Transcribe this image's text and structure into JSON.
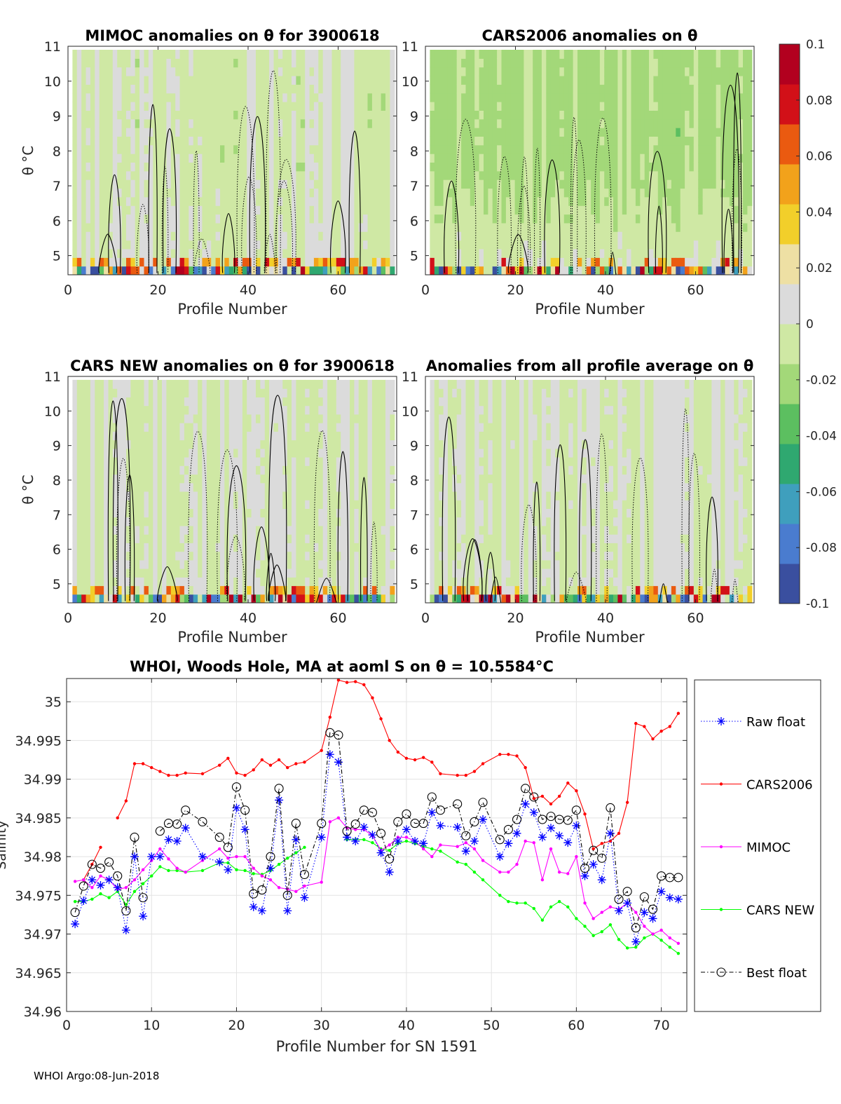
{
  "footer": "WHOI Argo:08-Jun-2018",
  "colors": {
    "cars2006": "#ff0000",
    "mimoc": "#ff00ff",
    "cars_new": "#00ff00",
    "raw": "#0000ff",
    "best": "#000000",
    "contour": "#000000",
    "colormap": [
      "#3a4f9f",
      "#4a7ccf",
      "#3f9fbd",
      "#2fa870",
      "#5cbf60",
      "#a3d879",
      "#cfe8a4",
      "#dbdbdb",
      "#eee0a4",
      "#f2cf2a",
      "#f2a21b",
      "#ea5a10",
      "#d21018",
      "#b2001f"
    ]
  },
  "chart_data": [
    {
      "id": "mimoc",
      "type": "heatmap",
      "title": "MIMOC anomalies on θ  for 3900618",
      "xlabel": "Profile Number",
      "ylabel": "θ °C",
      "xlim": [
        0,
        73
      ],
      "ylim": [
        4.45,
        11
      ],
      "xticks": [
        0,
        20,
        40,
        60
      ],
      "yticks": [
        5,
        6,
        7,
        8,
        9,
        10,
        11
      ],
      "bias": -0.004,
      "seed": 3
    },
    {
      "id": "cars2006",
      "type": "heatmap",
      "title": "CARS2006 anomalies on θ",
      "xlabel": "Profile Number",
      "ylabel": "",
      "xlim": [
        0,
        73
      ],
      "ylim": [
        4.45,
        11
      ],
      "xticks": [
        0,
        20,
        40,
        60
      ],
      "yticks": [
        5,
        6,
        7,
        8,
        9,
        10,
        11
      ],
      "bias": -0.018,
      "seed": 7
    },
    {
      "id": "cars_new",
      "type": "heatmap",
      "title": "CARS NEW anomalies on θ for 3900618",
      "xlabel": "Profile Number",
      "ylabel": "θ °C",
      "xlim": [
        0,
        73
      ],
      "ylim": [
        4.45,
        11
      ],
      "xticks": [
        0,
        20,
        40,
        60
      ],
      "yticks": [
        5,
        6,
        7,
        8,
        9,
        10,
        11
      ],
      "bias": -0.002,
      "seed": 11
    },
    {
      "id": "profile_avg",
      "type": "heatmap",
      "title": "Anomalies from all profile average on θ",
      "xlabel": "Profile Number",
      "ylabel": "",
      "xlim": [
        0,
        73
      ],
      "ylim": [
        4.45,
        11
      ],
      "xticks": [
        0,
        20,
        40,
        60
      ],
      "yticks": [
        5,
        6,
        7,
        8,
        9,
        10,
        11
      ],
      "bias": 0.001,
      "seed": 17
    },
    {
      "id": "colorbar",
      "type": "colorbar",
      "range": [
        -0.1,
        0.1
      ],
      "ticks": [
        0.1,
        0.08,
        0.06,
        0.04,
        0.02,
        0,
        -0.02,
        -0.04,
        -0.06,
        -0.08,
        -0.1
      ],
      "tick_labels": [
        "0.1",
        "0.08",
        "0.06",
        "0.04",
        "0.02",
        "0",
        "-0.02",
        "-0.04",
        "-0.06",
        "-0.08",
        "-0.1"
      ]
    },
    {
      "id": "salinity",
      "type": "line",
      "title": "WHOI, Woods Hole, MA at aoml S on θ = 10.5584°C",
      "xlabel": "Profile Number for SN 1591",
      "ylabel": "Salinity",
      "xlim": [
        0,
        73
      ],
      "ylim": [
        34.96,
        35.003
      ],
      "xticks": [
        0,
        10,
        20,
        30,
        40,
        50,
        60,
        70
      ],
      "yticks": [
        34.96,
        34.965,
        34.97,
        34.975,
        34.98,
        34.985,
        34.99,
        34.995,
        35
      ],
      "ytick_labels": [
        "34.96",
        "34.965",
        "34.97",
        "34.975",
        "34.98",
        "34.985",
        "34.99",
        "34.995",
        "35"
      ],
      "legend": [
        "Raw float",
        "CARS2006",
        "MIMOC",
        "CARS NEW",
        "Best float"
      ],
      "series": [
        {
          "name": "Raw float",
          "style": "raw",
          "x": [
            1,
            2,
            3,
            4,
            5,
            6,
            7,
            8,
            9,
            10,
            11,
            12,
            13,
            14,
            16,
            18,
            19,
            20,
            21,
            22,
            23,
            24,
            25,
            26,
            27,
            28,
            30,
            31,
            32,
            33,
            34,
            35,
            36,
            37,
            38,
            39,
            40,
            41,
            42,
            43,
            44,
            46,
            47,
            48,
            49,
            51,
            52,
            53,
            54,
            55,
            56,
            57,
            58,
            59,
            60,
            61,
            62,
            63,
            64,
            65,
            66,
            67,
            68,
            69,
            70,
            71,
            72
          ],
          "y": [
            34.9713,
            34.9743,
            34.977,
            34.9763,
            34.977,
            34.976,
            34.9705,
            34.98,
            34.9723,
            34.98,
            34.98,
            34.9822,
            34.982,
            34.9837,
            34.98,
            34.9793,
            34.9783,
            34.9863,
            34.9835,
            34.9735,
            34.973,
            34.9785,
            34.9873,
            34.973,
            34.9822,
            34.9747,
            34.9825,
            34.9932,
            34.9922,
            34.9825,
            34.982,
            34.9838,
            34.9828,
            34.9805,
            34.978,
            34.982,
            34.9835,
            34.982,
            34.9817,
            34.9857,
            34.984,
            34.9838,
            34.9807,
            34.982,
            34.9848,
            34.98,
            34.9817,
            34.983,
            34.9868,
            34.9857,
            34.9825,
            34.9837,
            34.9827,
            34.9818,
            34.984,
            34.9775,
            34.979,
            34.977,
            34.983,
            34.973,
            34.974,
            34.969,
            34.9728,
            34.972,
            34.9755,
            34.9747,
            34.9745
          ]
        },
        {
          "name": "CARS2006",
          "style": "cars2006",
          "x": [
            1,
            2,
            3,
            4,
            null,
            6,
            7,
            8,
            9,
            10,
            11,
            12,
            13,
            14,
            16,
            18,
            19,
            20,
            21,
            22,
            23,
            24,
            25,
            26,
            27,
            28,
            30,
            31,
            32,
            33,
            34,
            35,
            36,
            37,
            38,
            39,
            40,
            41,
            42,
            43,
            44,
            46,
            47,
            48,
            49,
            51,
            52,
            53,
            54,
            55,
            56,
            57,
            58,
            59,
            60,
            61,
            62,
            63,
            64,
            65,
            66,
            67,
            68,
            69,
            70,
            71,
            72
          ],
          "y": [
            null,
            34.977,
            34.979,
            34.9812,
            null,
            34.985,
            34.9872,
            34.992,
            34.992,
            34.9915,
            34.991,
            34.9905,
            34.9905,
            34.9908,
            34.9907,
            34.9918,
            34.9927,
            34.9908,
            34.9905,
            34.9912,
            34.9925,
            34.9918,
            34.9925,
            34.9915,
            34.992,
            34.9922,
            34.9937,
            34.998,
            35.0028,
            35.0025,
            35.0026,
            35.0022,
            35.0005,
            34.9978,
            34.995,
            34.9935,
            34.9927,
            34.9925,
            34.9928,
            34.9922,
            34.9907,
            34.9905,
            34.9905,
            34.991,
            34.992,
            34.9932,
            34.9932,
            34.993,
            34.9915,
            34.9875,
            34.9878,
            34.9868,
            34.9878,
            34.9895,
            34.9885,
            34.9855,
            34.981,
            34.9817,
            34.982,
            34.983,
            34.987,
            34.9972,
            34.9968,
            34.9952,
            34.9962,
            34.9968,
            34.9985
          ]
        },
        {
          "name": "MIMOC",
          "style": "mimoc",
          "x": [
            1,
            2,
            3,
            4,
            5,
            6,
            7,
            8,
            9,
            10,
            11,
            12,
            13,
            14,
            16,
            18,
            19,
            20,
            21,
            22,
            23,
            24,
            25,
            26,
            27,
            28,
            30,
            31,
            32,
            33,
            34,
            35,
            36,
            37,
            38,
            39,
            40,
            41,
            42,
            43,
            44,
            46,
            47,
            48,
            49,
            51,
            52,
            53,
            54,
            55,
            56,
            57,
            58,
            59,
            60,
            61,
            62,
            63,
            64,
            65,
            66,
            67,
            68,
            69,
            70,
            71,
            72
          ],
          "y": [
            34.9768,
            34.977,
            34.976,
            34.9775,
            34.977,
            34.9758,
            34.976,
            34.977,
            34.9783,
            34.9795,
            34.981,
            34.9797,
            34.9785,
            34.978,
            34.9795,
            34.981,
            34.9798,
            34.98,
            34.98,
            34.9785,
            34.9775,
            34.977,
            34.976,
            34.9758,
            34.9755,
            34.9762,
            34.9767,
            34.9845,
            34.985,
            34.9837,
            34.9835,
            34.9835,
            34.9827,
            34.9808,
            34.9815,
            34.9825,
            34.9825,
            34.982,
            34.981,
            34.98,
            34.9815,
            34.9813,
            34.9818,
            34.981,
            34.9795,
            34.978,
            34.978,
            34.979,
            34.982,
            34.9818,
            34.977,
            34.981,
            34.978,
            34.9778,
            34.98,
            34.974,
            34.972,
            34.9728,
            34.9735,
            34.9732,
            34.974,
            34.9728,
            34.971,
            34.97,
            34.9705,
            34.9695,
            34.9688
          ]
        },
        {
          "name": "CARS NEW",
          "style": "cars_new",
          "x": [
            1,
            2,
            3,
            4,
            5,
            6,
            7,
            8,
            9,
            10,
            11,
            12,
            13,
            14,
            16,
            18,
            19,
            20,
            21,
            22,
            23,
            24,
            25,
            26,
            27,
            28,
            30,
            31,
            32,
            33,
            34,
            35,
            36,
            37,
            38,
            39,
            40,
            41,
            42,
            43,
            44,
            46,
            47,
            48,
            49,
            51,
            52,
            53,
            54,
            55,
            56,
            57,
            58,
            59,
            60,
            61,
            62,
            63,
            64,
            65,
            66,
            67,
            68,
            69,
            70,
            71,
            72
          ],
          "y": [
            34.9742,
            34.9742,
            34.9745,
            34.9752,
            34.9747,
            34.9755,
            34.9738,
            34.9755,
            34.9765,
            34.9775,
            34.9787,
            34.9782,
            34.9782,
            34.978,
            34.9782,
            34.9792,
            34.9792,
            34.9783,
            34.9782,
            34.9778,
            34.9777,
            34.9782,
            34.979,
            34.9798,
            34.9805,
            34.9812,
            null,
            null,
            null,
            34.9822,
            34.9822,
            34.9822,
            34.9818,
            34.981,
            34.9808,
            34.9817,
            34.982,
            34.9817,
            34.9813,
            34.981,
            34.9807,
            34.9793,
            34.979,
            34.978,
            34.977,
            34.975,
            34.9742,
            34.974,
            34.974,
            34.9733,
            34.9718,
            34.9735,
            34.9742,
            34.9735,
            34.972,
            34.971,
            34.9698,
            34.9703,
            34.9712,
            34.9693,
            34.9682,
            34.9683,
            34.9695,
            34.97,
            34.9692,
            34.9683,
            34.9675
          ]
        },
        {
          "name": "Best float",
          "style": "best",
          "x": [
            1,
            2,
            3,
            4,
            5,
            6,
            7,
            8,
            9,
            10,
            11,
            12,
            13,
            14,
            16,
            18,
            19,
            20,
            21,
            22,
            23,
            24,
            25,
            26,
            27,
            28,
            30,
            31,
            32,
            33,
            34,
            35,
            36,
            37,
            38,
            39,
            40,
            41,
            42,
            43,
            44,
            46,
            47,
            48,
            49,
            51,
            52,
            53,
            54,
            55,
            56,
            57,
            58,
            59,
            60,
            61,
            62,
            63,
            64,
            65,
            66,
            67,
            68,
            69,
            70,
            71,
            72
          ],
          "y": [
            34.9728,
            34.9762,
            34.979,
            34.9785,
            34.9793,
            34.9775,
            34.973,
            34.9825,
            34.9747,
            null,
            34.9833,
            34.9843,
            34.9842,
            34.986,
            34.9845,
            34.9825,
            34.9812,
            34.989,
            34.986,
            34.9752,
            34.9757,
            34.98,
            34.9888,
            34.975,
            34.9843,
            34.9777,
            34.9843,
            34.996,
            34.9957,
            34.9833,
            34.9842,
            34.986,
            34.9857,
            34.983,
            34.9797,
            34.9845,
            34.9855,
            34.9843,
            34.9843,
            34.9877,
            34.986,
            34.9868,
            34.9827,
            34.9845,
            34.987,
            34.9822,
            34.9835,
            34.9848,
            34.9888,
            34.9877,
            34.9848,
            34.9852,
            34.9848,
            34.9847,
            34.986,
            34.9785,
            34.9808,
            34.9798,
            34.9863,
            34.9745,
            34.9755,
            34.9708,
            34.9748,
            34.9732,
            34.9775,
            34.9773,
            34.9773
          ]
        }
      ]
    }
  ]
}
